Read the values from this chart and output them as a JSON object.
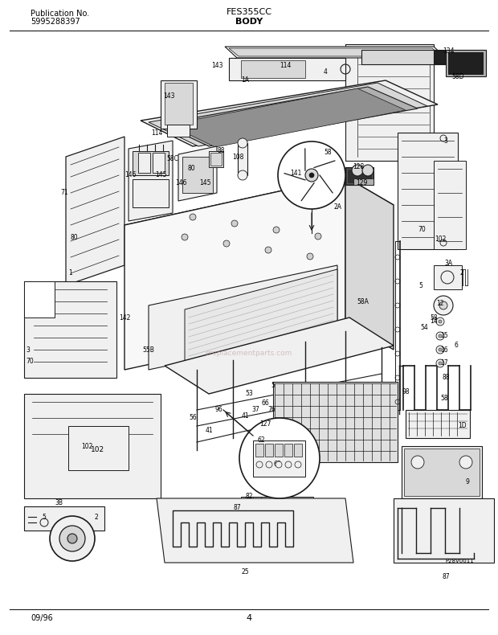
{
  "title_left_line1": "Publication No.",
  "title_left_line2": "5995288397",
  "title_center": "FES355CC",
  "title_sub": "BODY",
  "footer_left": "09/96",
  "footer_center": "4",
  "bg_color": "#ffffff",
  "fig_width": 6.2,
  "fig_height": 7.9,
  "dpi": 100,
  "line_color": "#1a1a1a",
  "fill_light": "#f0f0f0",
  "fill_medium": "#d8d8d8",
  "fill_dark": "#b0b0b0",
  "fill_black": "#202020"
}
